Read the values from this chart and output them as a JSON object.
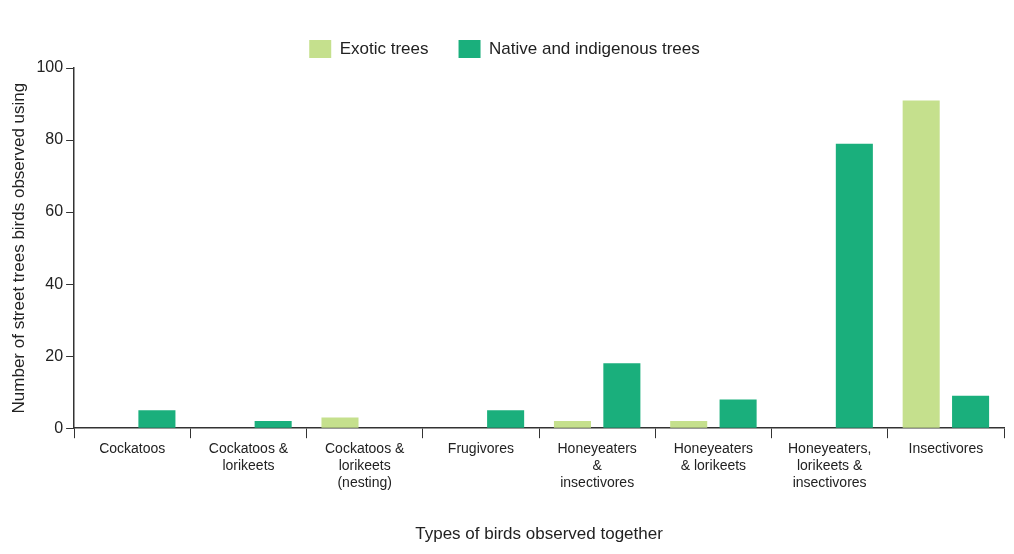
{
  "chart_data": {
    "type": "bar",
    "xlabel": "Types of birds observed together",
    "ylabel": "Number of street trees birds observed using",
    "categories": [
      "Cockatoos",
      "Cockatoos & lorikeets",
      "Cockatoos & lorikeets (nesting)",
      "Frugivores",
      "Honeyeaters & insectivores",
      "Honeyeaters & lorikeets",
      "Honeyeaters, lorikeets & insectivores",
      "Insectivores"
    ],
    "series": [
      {
        "name": "Exotic trees",
        "color": "#c5e08d",
        "values": [
          0,
          0,
          3,
          0,
          2,
          2,
          0,
          91
        ]
      },
      {
        "name": "Native and indigenous trees",
        "color": "#1aaf7c",
        "values": [
          5,
          2,
          0,
          5,
          18,
          8,
          79,
          9
        ]
      }
    ],
    "ylim": [
      0,
      100
    ],
    "yticks": [
      0,
      20,
      40,
      60,
      80,
      100
    ],
    "grid": false,
    "legend": "top"
  }
}
